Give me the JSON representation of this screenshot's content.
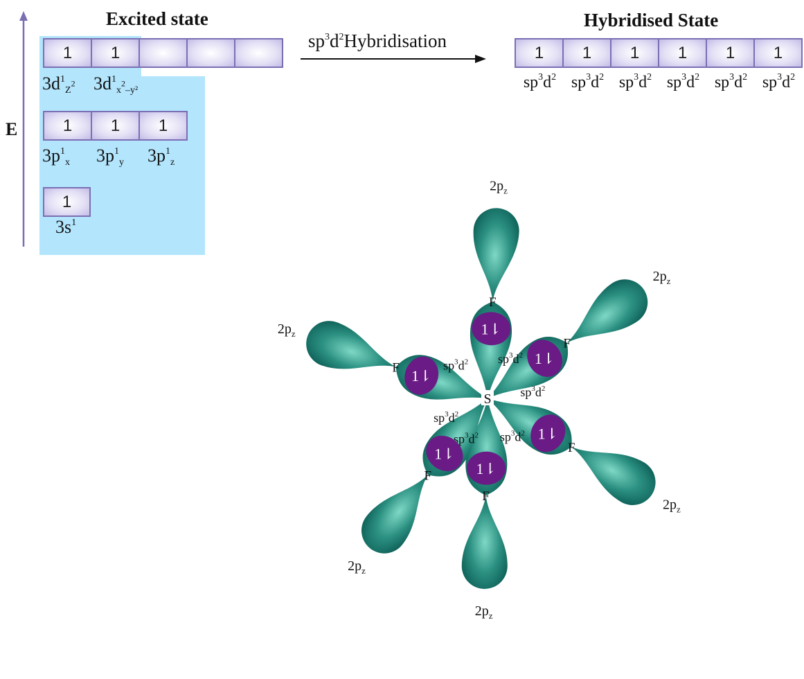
{
  "excited": {
    "title": "Excited state",
    "energy_label": "E",
    "d_boxes": [
      "1",
      "1",
      "",
      "",
      ""
    ],
    "p_boxes": [
      "1",
      "1",
      "1"
    ],
    "s_boxes": [
      "1"
    ],
    "d_labels": [
      {
        "main": "3d",
        "sup": "1",
        "sub": "Z",
        "sub_sup": "2",
        "tail": ""
      },
      {
        "main": "3d",
        "sup": "1",
        "sub": "x",
        "sub_sup": "2",
        "tail": "–y²"
      }
    ],
    "p_labels": [
      {
        "main": "3p",
        "sup": "1",
        "sub": "x"
      },
      {
        "main": "3p",
        "sup": "1",
        "sub": "y"
      },
      {
        "main": "3p",
        "sup": "1",
        "sub": "z"
      }
    ],
    "s_label": {
      "main": "3s",
      "sup": "1"
    }
  },
  "arrow": {
    "label_pre": "sp",
    "label_sup1": "3",
    "label_mid": "d",
    "label_sup2": "2",
    "label_post": "Hybridisation"
  },
  "hybrid": {
    "title": "Hybridised State",
    "boxes": [
      "1",
      "1",
      "1",
      "1",
      "1",
      "1"
    ],
    "labels": [
      {
        "a": "sp",
        "b": "3",
        "c": "d",
        "d": "2"
      },
      {
        "a": "sp",
        "b": "3",
        "c": "d",
        "d": "2"
      },
      {
        "a": "sp",
        "b": "3",
        "c": "d",
        "d": "2"
      },
      {
        "a": "sp",
        "b": "3",
        "c": "d",
        "d": "2"
      },
      {
        "a": "sp",
        "b": "3",
        "c": "d",
        "d": "2"
      },
      {
        "a": "sp",
        "b": "3",
        "c": "d",
        "d": "2"
      }
    ]
  },
  "molecule": {
    "center_atom": "S",
    "bonds": [
      {
        "angle_deg": -87,
        "f_label": "F",
        "p_label_main": "2p",
        "p_label_sub": "z",
        "hybrid_main": "sp",
        "hybrid_sup": "3",
        "hybrid_rest": "d",
        "hybrid_sup2": "2",
        "pair": "1⇂"
      },
      {
        "angle_deg": -35,
        "f_label": "F",
        "p_label_main": "2p",
        "p_label_sub": "z",
        "hybrid_main": "sp",
        "hybrid_sup": "3",
        "hybrid_rest": "d",
        "hybrid_sup2": "2",
        "pair": "1⇂"
      },
      {
        "angle_deg": 30,
        "f_label": "F",
        "p_label_main": "2p",
        "p_label_sub": "z",
        "hybrid_main": "sp",
        "hybrid_sup": "3",
        "hybrid_rest": "d",
        "hybrid_sup2": "2",
        "pair": "1⇂"
      },
      {
        "angle_deg": 91,
        "f_label": "F",
        "p_label_main": "2p",
        "p_label_sub": "z",
        "hybrid_main": "sp",
        "hybrid_sup": "3",
        "hybrid_rest": "d",
        "hybrid_sup2": "2",
        "pair": "1⇂"
      },
      {
        "angle_deg": 128,
        "f_label": "F",
        "p_label_main": "2p",
        "p_label_sub": "z",
        "hybrid_main": "sp",
        "hybrid_sup": "3",
        "hybrid_rest": "d",
        "hybrid_sup2": "2",
        "pair": "1⇂"
      },
      {
        "angle_deg": -161,
        "f_label": "F",
        "p_label_main": "2p",
        "p_label_sub": "z",
        "hybrid_main": "sp",
        "hybrid_sup": "3",
        "hybrid_rest": "d",
        "hybrid_sup2": "2",
        "pair": "1⇂"
      }
    ]
  },
  "colors": {
    "lobe_dark": "#0d5e56",
    "lobe_light": "#6fcfbe",
    "pair": "#6a1b86",
    "box_border": "#7b6fb3",
    "panel": "#b3e5fc",
    "axis": "#7b6fb3"
  }
}
